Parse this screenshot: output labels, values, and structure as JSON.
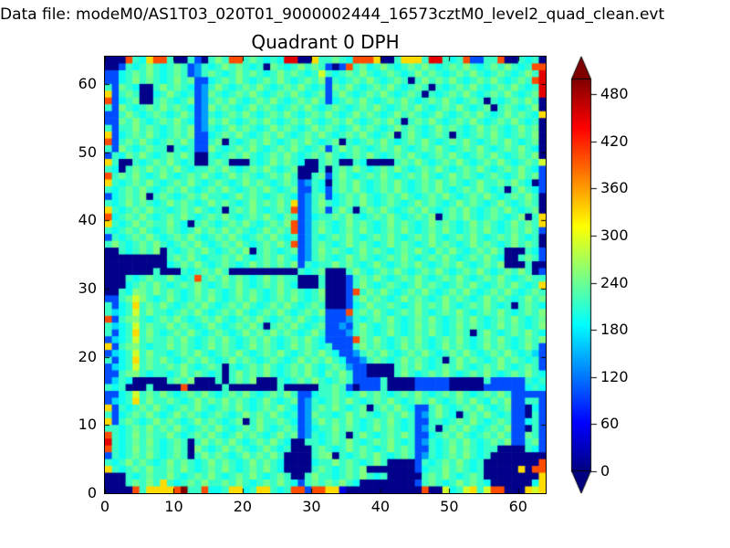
{
  "figure": {
    "data_file_label": "Data file: modeM0/AS1T03_020T01_9000002444_16573cztM0_level2_quad_clean.evt",
    "title": "Quadrant 0 DPH",
    "background_color": "#ffffff",
    "frame_color": "#000000"
  },
  "chart_data": {
    "type": "heatmap",
    "title": "Quadrant 0 DPH",
    "xlabel": "",
    "ylabel": "",
    "x_range": [
      0,
      64
    ],
    "y_range": [
      0,
      64
    ],
    "x_ticks": [
      0,
      10,
      20,
      30,
      40,
      50,
      60
    ],
    "y_ticks": [
      0,
      10,
      20,
      30,
      40,
      50,
      60
    ],
    "tick_direction": "in",
    "grid": false,
    "colormap": "jet",
    "vmin": 0,
    "vmax": 500,
    "colorbar_ticks": [
      0,
      60,
      120,
      180,
      240,
      300,
      360,
      420,
      480
    ],
    "colorbar_extend": "both",
    "grid_size": [
      64,
      64
    ],
    "palette_values": {
      "n": 5,
      "d": 50,
      "b": 100,
      "B": 140,
      "c": 170,
      ",": 195,
      ".": 215,
      ":": 240,
      ";": 250,
      "g": 290,
      "y": 330,
      "o": 400,
      "r": 450,
      "R": 520
    },
    "grid_rows_top_to_bottom": [
      "nnno.,yoo.nn.bn.;.oo.:.,.,rrnny..:.,oooynn.yyy.rr.,.obb..onn.,.n",
      "nnb.,.;.,.:.bB.,.;.:.,.n:.,.;.:.bnbo.:,.;.,.:.;.,.:.;.,.:.;.,.oo",
      "bb,.:.;.,.:.bB.:.,.;.:.,.;.:.,.g.,.:.;.,.:.,.;.:.,.:.;.,.:.,.;.r",
      "bb,.;.:.,.;.:bb,.:.;.,.:.;.,.:.;b.,.:.;.,.:.n.;.:.;.,.:.;.,.:.or",
      ".b:.,nn.;.:.,bB.;.,.:.;.,.:.;.,.b:.;.,.:.;.,.:.n.,.:.;.,.:.;.,.r",
      "yb.:.nn,.;.,.bB:.,.:.;.,.:.;.,.:b.;.,.:.;.,.:.n.,.:.;.,.:.;.,.:r",
      "ob,.:nn.:.,.;bB.:.;.,.:.;.,.:.;.b,.:.;.,.:.;.,.:.;.,.:.n.,.:.;.n",
      ".b;.,.:.;.:.,bB;.:.,.;.:.,.:.;.,.:.,.:.;.,.:.;.,.:.;.,.:n.:.,.;n",
      "bb.;.,.:.,.;.bB.,.:.;.,.:.;.,.:.;.,.;.:.,.;.:.,.;.,.:.;.,.;.:.,y",
      "bb:.;.,.:.;.,bB:.;.,.:.;.,.:.;.,.:.;.,.:.;.n.:.;.,.:.;.,.:.;.,.n",
      ".b..;.:.,.:.;bB.,.;.:.,.;.:.,.;.:.,.;.:.,.;.:.,.;.:.,.;.:.,.;.:n",
      "yb,.:.;.,.:.;bb,.:.;.,.:.;.,.:.;.,.:.;.,.:n.;.,.:.n.,.:.;.,.:.;n",
      "ob.:.;.,.:.;.bb.:n.,.:.;.,.:.;.,.:n.,.:.;.,.:.;.,.:.;.,.:.;.,.:n",
      ".b;.,.:..n.,.bb;.,.:.;.,.:.;.,.:b.;.:.,.:.;.,.:.;.,.:.;.,.:.;.,n",
      "b.,:.;.,.:.;.nn.,.:.;.,.:.;.,.:.;.,.:.;.,.:.;.,.:.;.,.:.;.,.:.;n",
      "y.nn.,.:.;.,.nn.:.nnn.,.;.:.,nn.:.nn.,nnnn.:.;.,.:.;.,.:.;.,.:.g",
      ".,n.:.;.:.;.,..:.;.,.:.;.,.:nnn.n.:.;.,.:.;.,.:.;.,.:.;.,.:.;.,b",
      "o.:.;.,.;.,.:.;.,.;.:.,.:.;.nn.:b.;.,.:.;.,.:.;.,.;.:.,.:.,.;.:b",
      "y.,.:.;.,.:.;.,.:.,.;.:.,.:.bB.,n.:.;.,.:.;.,.:.;.:.,.;..:.;.,nb",
      ".,.:.;.,.:.;.,.:.;.,.:.;.,.:bb.,b.:.;.,.:.;.,.:.;.,.:.;.,.n.;.,b",
      "b,.:.;n.:.,.:.;..,.;.:.,.:.,bB.:b,.:.;.,.:.;.,.:.;.,.:.;.,.:.;.n",
      ".,.;.:.,.;.:.,.;.:.,.;.:.;.ybB.;.,.:.;.,.:.,.;.:.,.;.:.,.;.,.:.n",
      "y.,.:.;..,.:.;.,.n.:.;.,.:.obB.:b.;.n.:.;.,.:.;.,.:.;.,.:.;.,.:n",
      "o,.:.;.,.:.;.,.:.;.,.:.;.,:.bB,..:.;.,.:.;.,.:.;n.:.;.,.:.,.;n.y",
      "y.,.;.:..;.,n.:.,.:.;.,.:.;obB.:.,.;.:.,.;.:.,.;.:.,.;.:.,.;.:.y",
      ".,.:.;.,.:.,.;.:.;.:.,.;.:.obB.;.,.:.;.,.:.;.,.:.;.,.:.;.,.:.;.b",
      "b.,.:.;.,.:.;.,.:.;.,.:.;.,.bB.,.:.;.,.:.;.,.:.;.,.:.;.,.:.;.,.n",
      ".;.,.:.;.,.:.;.,.:.;.,.:.;.obB.:.,.;.:.,.;.:.,.;.:.,.;.:.,.;.:.n",
      "nn.,.:.;n.,.:.;.,.:.;n.:.,.:bB.;.:.,.;.:.,.:.;.,:.;.,.:.;.nnn.,b",
      "nnnnnnnnn.:.;.,..:.;.,.:.;.,bB.:.,.;.:.,.:.;.,.:.;.,.:.;.,nn.:.b",
      "nnnnnnnnn,.:.;.,.:.,.;.:.:.;b.,..;.:.,.;.,.:.;.,.:.;.,.:.;nnn.nn",
      "nnnnnnn.nnn.,.:.;.nnnnnnnnnn.,.:nnn.;.,.:.;.,.:.;.,.:.;.,.:.;.nb",
      "nnn.,.:..;.,.o.:.;.:.,.;.:..nnn.nnnb.:.;.,.:.;.,.:.;.,.:.;.,.:..",
      "nnn,.:.;.,.:.;.,.:.;.,.:.;.,nnn.nnnb.;.,.:.,.;.:.,.:.;.,.:.;.,.y",
      "nn.,;:.;.:.,.;.:.,.;.:.,.;.:.,.;nnnbo.:.;.,.:.;.,.:.;.,.:.;.,.:.",
      "bb.:g;.,.;.,.:.;.,.:.;.,.:.;.,.:nnnb.;.:.,.;.:.,.;.:.,.;.:.,.;.:",
      ".b,.y.:.;.,.:.;.,.:.;.,.:.;.,.:.nnnb,.;..:.,.;.:.;.,.:.;.,.n.:.,",
      ".c,.g.;..,.:.;.,.:.;.,.:.;.,.:.;bbbo.:.;.,.:.;.,.:.;.,.:.;.,.:.;",
      "ob.:;.,.:.;.,.:.;.,.:.;.,.:.;.,.bbbB.,.:.;.,.:.;.,.:.;.,.:.;.,.:",
      ".c,.g.:..;.:.,.;.,.:.;.n.:.;.,.:bbBb.;.,.:.,.;.:.,.;.:.,.;.:.,.;",
      ".b,.y.;.,.:.;.,.:.,.;.:.;.:.,.;.bbbB.:.,.;.,.:.;.,.:.n.;.,.:.;.,",
      "bc,.g.:..:.;.,.:.;.,.:.;.,.:.;.,bbbbo:.;.,.:.;.,.:.;.,.:.;.,.:.;",
      "yb.:;.,..;.:.,.;.:.,.;.:.,.;.:.,.bbb.;.:.,.;.:.,.;.:.,.;.:.,.;.b",
      "bc,.g.;..,.:.;.,.:.;.,.:.;.,.:.;.,bbB.:.;.,.:.;.,.:.;.,.:.;.,.cb",
      ".b,.y.:.;.,.:.;.,.;.:.,.:.,.;.:.;.,bbB.:.,.;.:.,.n.;.:.,.;.:.,.b",
      "bc,.g.:..:.;.,.:.n.,.:.;.,.:.;.,.:.Bbbnnnn.:.;.,.:.;.,.:.;.,.:.b",
      "bb.:;.,..,.;.:.,.n.;.:.;.,.:.;.,:.;.bbnnnn.;.,.:.;.,.:.;.,.:.;.,",
      "bc.,nnnnn.:.;nnn.n.:.;nnn.,.:.;.,.:.bbbb.nnnnbbbbbnnnnn.bbbbb.,.",
      ".,.nnn.nnnnonnnnn.nnnnnnn.nnnnn..:.bnbbb.nnnnbbbbbnnnnnbbbbbb,.,",
      "bb,.g.:.;.,.:.;.,.:.;.,.:.;.bb,..:.,.;.:.,.:.;.,.:.;.,.:.;.bbbbb",
      "bc,.y.;..:.,.;.:.;.:.,.;.,.:bB.,.:.;.,.:.;.,.:.;.,.:.;.,:.;bb..b",
      "yb.,.:.;.,.:.;.,.:.;.,.:.;.,bB.:.;.,.:n.:.;.,bb.;.,.:.;.,.:bbn,b",
      ".b,.:.;.,.;.:.,.:.,.;.:.;.,.bB:..,.;.:.,.:.;.bB.;.,n.:.;.,.bbn.b",
      "yb.:.,.;.:.,.;.:.,.:n.;..:.,bB.;.:.;.,.:.;.,.bb..,.:.;.,.:.bb,.b",
      "..,.:.;.:.;.,.:.;.,.:.;.,.:.bB,..;.:.,.;.:.,.bB.n.:.;.,.:.;bbn.b",
      "o.,.;.:..;.,.:.;.,.;.:.,.;.:bB.,.:.n.;.,.:.;.bb,.:.;.,.:.;.bb:.b",
      "r.,.:.;.,.:.n.;.:.;.,.:.;.,nn..,.:.;.,.:.;.,.bB.,.:.;.,.:.;bb.:b",
      "o.,.;.:.,.:.n;.,.;.:.,.;.,.nnn.:.,.;.:.,.;.:.bb.,.;.:.,..nnnn.,b",
      "b.,.:.;.,.:.n.;.:.,.;.:.;.nnnn.:;n.,.:.;.,.:.bB.,.:.;.,.nnnnnnnn",
      ".,.;.:.,.;.:.,.;.:.,.;.:.,nnnn,..;.:.,.;.nnnnb.,.:.;.,.nnnnnnnno",
      "y.,.:.;..:.;.,.:.;.,.:.;.,nnnn.:.,.:.;nnnnnnnb,..;.:.,.nnnnnynoo",
      "nnn.,.:..;.,.:.;.,.:.;.,.:.nn.;..,.:.;.,.nnnnn.:.;.,.:.nnnnnnnny",
      "nnn.:.;.y.,.:.;..:.;.,.:.;.,b.:.:.;.,nnnnnnnnb.:.,.;.:.,nnnnnn,y",
      "nnnno.yyyyoR..o,,.yy,.yy.,.oobooyydnnnnnnnnnnnonng,.gy.goonnnygy"
    ]
  }
}
